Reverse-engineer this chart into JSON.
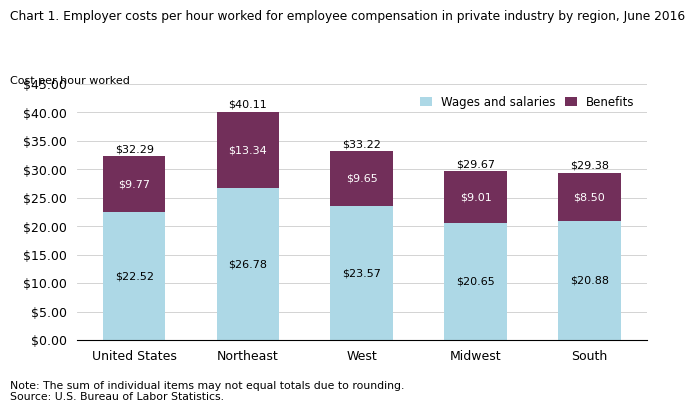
{
  "title": "Chart 1. Employer costs per hour worked for employee compensation in private industry by region, June 2016",
  "ylabel": "Cost per hour worked",
  "categories": [
    "United States",
    "Northeast",
    "West",
    "Midwest",
    "South"
  ],
  "wages": [
    22.52,
    26.78,
    23.57,
    20.65,
    20.88
  ],
  "benefits": [
    9.77,
    13.34,
    9.65,
    9.01,
    8.5
  ],
  "totals": [
    32.29,
    40.11,
    33.22,
    29.67,
    29.38
  ],
  "wages_color": "#ADD8E6",
  "benefits_color": "#722F5A",
  "ylim": [
    0,
    45
  ],
  "yticks": [
    0,
    5,
    10,
    15,
    20,
    25,
    30,
    35,
    40,
    45
  ],
  "legend_labels": [
    "Wages and salaries",
    "Benefits"
  ],
  "note": "Note: The sum of individual items may not equal totals due to rounding.\nSource: U.S. Bureau of Labor Statistics.",
  "wages_label_color": "#000000",
  "benefits_label_color": "#ffffff",
  "total_label_color": "#000000"
}
